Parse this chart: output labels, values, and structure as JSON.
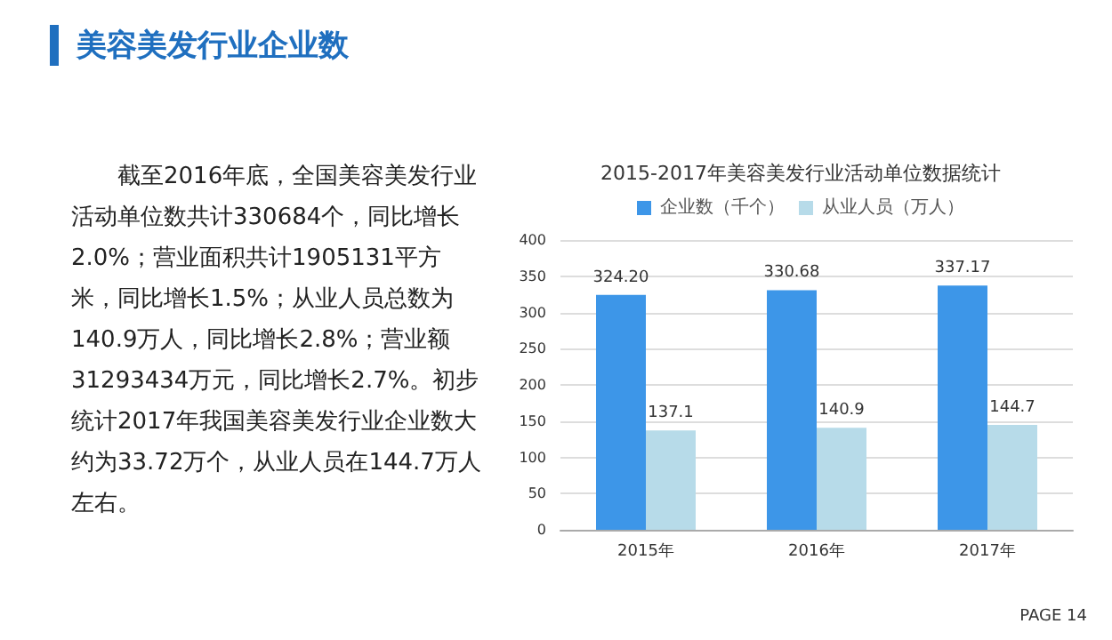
{
  "chart_data": {
    "type": "bar",
    "title": "2015-2017年美容美发行业活动单位数据统计",
    "categories": [
      "2015年",
      "2016年",
      "2017年"
    ],
    "series": [
      {
        "name": "企业数（千个）",
        "color": "#3d96e8",
        "values": [
          324.2,
          330.68,
          337.17
        ],
        "value_labels": [
          "324.20",
          "330.68",
          "337.17"
        ]
      },
      {
        "name": "从业人员（万人）",
        "color": "#b7dbe9",
        "values": [
          137.1,
          140.9,
          144.7
        ],
        "value_labels": [
          "137.1",
          "140.9",
          "144.7"
        ]
      }
    ],
    "ylim": [
      0,
      400
    ],
    "yticks": [
      0,
      50,
      100,
      150,
      200,
      250,
      300,
      350,
      400
    ],
    "grid": "y",
    "legend": "top",
    "annotations": [
      "美容美发行业企业数",
      "截至2016年底，全国美容美发行业活动单位数共计330684个，同比增长2.0%；营业面积共计1905131平方米，同比增长1.5%；从业人员总数为140.9万人，同比增长2.8%；营业额31293434万元，同比增长2.7%。初步统计2017年我国美容美发行业企业数大约为33.72万个，从业人员在144.7万人左右。",
      "PAGE 14"
    ]
  }
}
